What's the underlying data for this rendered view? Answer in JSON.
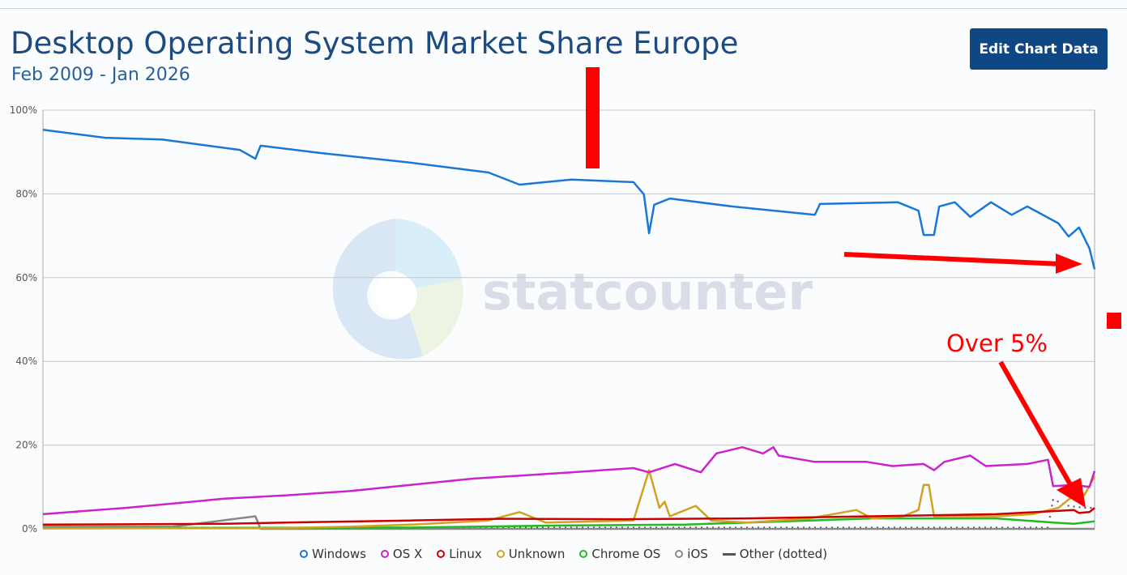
{
  "header": {
    "title": "Desktop Operating System Market Share Europe",
    "subtitle": "Feb 2009 - Jan 2026",
    "edit_button": "Edit Chart Data"
  },
  "watermark": {
    "logo_text": "statcounter"
  },
  "annotation": {
    "text": "Over 5%",
    "color": "#ff0000"
  },
  "chart_data": {
    "type": "line",
    "title": "Desktop Operating System Market Share Europe",
    "x_range": [
      "2009-02",
      "2026-01"
    ],
    "ylim": [
      0,
      100
    ],
    "yticks": [
      "0%",
      "20%",
      "40%",
      "60%",
      "80%",
      "100%"
    ],
    "grid": true,
    "legend_position": "bottom",
    "series": [
      {
        "name": "Windows",
        "color": "#1a78d4",
        "points": [
          [
            "2009-02",
            95.3
          ],
          [
            "2010-02",
            93.4
          ],
          [
            "2011-01",
            93
          ],
          [
            "2012-04",
            90.5
          ],
          [
            "2012-07",
            88.4
          ],
          [
            "2012-08",
            91.5
          ],
          [
            "2013-08",
            89.7
          ],
          [
            "2014-12",
            87.6
          ],
          [
            "2016-04",
            85.1
          ],
          [
            "2016-10",
            82.2
          ],
          [
            "2017-08",
            83.4
          ],
          [
            "2018-08",
            82.8
          ],
          [
            "2018-10",
            79.9
          ],
          [
            "2018-11",
            70.6
          ],
          [
            "2018-12",
            77.4
          ],
          [
            "2019-03",
            78.9
          ],
          [
            "2020-03",
            77
          ],
          [
            "2021-07",
            75
          ],
          [
            "2021-08",
            77.6
          ],
          [
            "2022-11",
            78
          ],
          [
            "2023-03",
            76
          ],
          [
            "2023-04",
            70.2
          ],
          [
            "2023-06",
            70.2
          ],
          [
            "2023-07",
            77
          ],
          [
            "2023-10",
            78
          ],
          [
            "2024-01",
            74.5
          ],
          [
            "2024-05",
            78
          ],
          [
            "2024-09",
            75
          ],
          [
            "2024-12",
            77
          ],
          [
            "2025-06",
            73
          ],
          [
            "2025-08",
            69.8
          ],
          [
            "2025-10",
            72
          ],
          [
            "2025-12",
            67
          ],
          [
            "2026-01",
            62
          ]
        ]
      },
      {
        "name": "OS X",
        "color": "#cc22cc",
        "points": [
          [
            "2009-02",
            3.5
          ],
          [
            "2010-06",
            5
          ],
          [
            "2012-01",
            7.2
          ],
          [
            "2013-01",
            8
          ],
          [
            "2014-01",
            9
          ],
          [
            "2015-01",
            10.5
          ],
          [
            "2016-01",
            12
          ],
          [
            "2017-08",
            13.5
          ],
          [
            "2018-08",
            14.5
          ],
          [
            "2018-11",
            13.5
          ],
          [
            "2019-04",
            15.5
          ],
          [
            "2019-09",
            13.5
          ],
          [
            "2019-12",
            18
          ],
          [
            "2020-05",
            19.5
          ],
          [
            "2020-09",
            18
          ],
          [
            "2020-11",
            19.5
          ],
          [
            "2020-12",
            17.5
          ],
          [
            "2021-07",
            16
          ],
          [
            "2022-05",
            16
          ],
          [
            "2022-10",
            15
          ],
          [
            "2023-04",
            15.5
          ],
          [
            "2023-06",
            14
          ],
          [
            "2023-08",
            16
          ],
          [
            "2024-01",
            17.5
          ],
          [
            "2024-04",
            15
          ],
          [
            "2024-12",
            15.5
          ],
          [
            "2025-04",
            16.5
          ],
          [
            "2025-05",
            10.2
          ],
          [
            "2025-09",
            10.5
          ],
          [
            "2025-12",
            10
          ],
          [
            "2026-01",
            13.8
          ]
        ]
      },
      {
        "name": "Linux",
        "color": "#cc0000",
        "points": [
          [
            "2009-02",
            1
          ],
          [
            "2012-01",
            1.2
          ],
          [
            "2013-01",
            1.5
          ],
          [
            "2015-01",
            2
          ],
          [
            "2016-06",
            2.4
          ],
          [
            "2018-06",
            2.3
          ],
          [
            "2020-06",
            2.5
          ],
          [
            "2022-06",
            3
          ],
          [
            "2024-06",
            3.5
          ],
          [
            "2025-09",
            4.5
          ],
          [
            "2025-10",
            3.8
          ],
          [
            "2025-12",
            4
          ],
          [
            "2026-01",
            5
          ]
        ]
      },
      {
        "name": "Unknown",
        "color": "#d4a020",
        "points": [
          [
            "2009-02",
            0.1
          ],
          [
            "2013-01",
            0.2
          ],
          [
            "2014-01",
            0.5
          ],
          [
            "2015-01",
            1
          ],
          [
            "2016-04",
            2
          ],
          [
            "2016-10",
            4
          ],
          [
            "2017-03",
            1.5
          ],
          [
            "2018-08",
            2
          ],
          [
            "2018-11",
            14
          ],
          [
            "2019-01",
            5
          ],
          [
            "2019-02",
            6.5
          ],
          [
            "2019-03",
            3
          ],
          [
            "2019-08",
            5.5
          ],
          [
            "2019-11",
            2
          ],
          [
            "2020-06",
            1.5
          ],
          [
            "2021-06",
            2.5
          ],
          [
            "2022-03",
            4.5
          ],
          [
            "2022-06",
            2.5
          ],
          [
            "2022-12",
            3
          ],
          [
            "2023-03",
            4.5
          ],
          [
            "2023-04",
            10.5
          ],
          [
            "2023-05",
            10.5
          ],
          [
            "2023-06",
            3
          ],
          [
            "2024-06",
            3
          ],
          [
            "2025-01",
            3.5
          ],
          [
            "2025-06",
            5
          ],
          [
            "2025-09",
            8
          ],
          [
            "2025-11",
            8
          ],
          [
            "2026-01",
            12.5
          ]
        ]
      },
      {
        "name": "Chrome OS",
        "color": "#22bb22",
        "points": [
          [
            "2009-02",
            0.2
          ],
          [
            "2015-01",
            0.3
          ],
          [
            "2017-06",
            0.8
          ],
          [
            "2019-06",
            1
          ],
          [
            "2020-06",
            1.5
          ],
          [
            "2021-06",
            2
          ],
          [
            "2022-06",
            2.5
          ],
          [
            "2024-06",
            2.5
          ],
          [
            "2025-05",
            1.5
          ],
          [
            "2025-09",
            1.2
          ],
          [
            "2026-01",
            1.8
          ]
        ]
      },
      {
        "name": "iOS",
        "color": "#888888",
        "points": [
          [
            "2009-02",
            0.5
          ],
          [
            "2011-03",
            0.5
          ],
          [
            "2012-07",
            3
          ],
          [
            "2012-08",
            0
          ],
          [
            "2026-01",
            0
          ]
        ]
      },
      {
        "name": "Other (dotted)",
        "color": "#555555",
        "dotted": true,
        "points": [
          [
            "2009-02",
            0.3
          ],
          [
            "2025-04",
            0.3
          ],
          [
            "2025-05",
            7
          ],
          [
            "2025-08",
            5.5
          ],
          [
            "2025-11",
            5
          ],
          [
            "2026-01",
            5
          ]
        ]
      }
    ]
  }
}
